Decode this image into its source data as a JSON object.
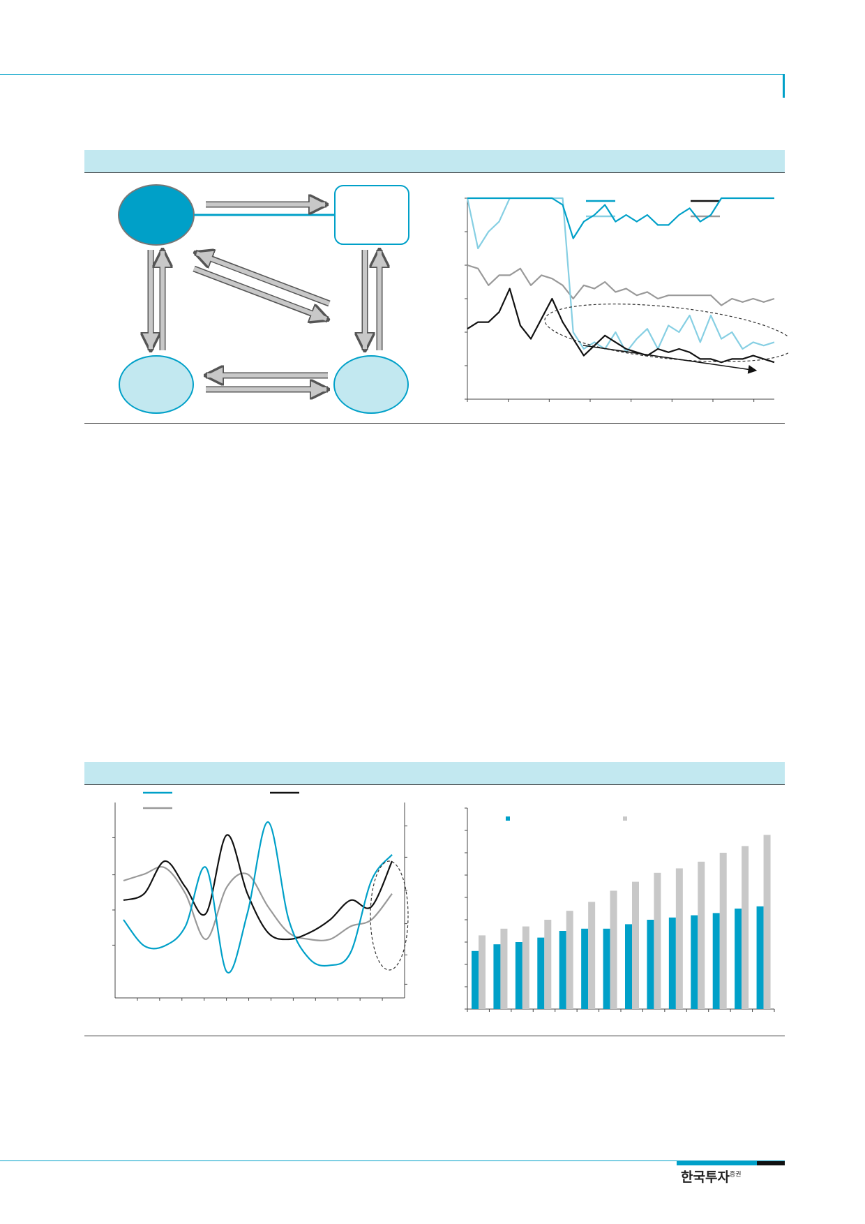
{
  "brand": {
    "name": "한국투자",
    "suffix": "증권"
  },
  "colors": {
    "teal": "#00a0c8",
    "light_teal": "#86cfe3",
    "black": "#111111",
    "gray": "#999999",
    "band": "#c2e8f0",
    "bar_gray": "#c8c8c8"
  },
  "chart_data": [
    {
      "type": "line",
      "series": [
        {
          "color": "#00a0c8",
          "values": [
            62,
            64,
            62,
            66,
            62,
            67,
            63,
            66,
            60,
            58,
            48,
            53,
            55,
            58,
            53,
            55,
            53,
            55,
            52,
            52,
            55,
            57,
            53,
            55,
            60,
            61,
            61,
            64,
            64,
            60
          ]
        },
        {
          "color": "#86cfe3",
          "values": [
            60,
            45,
            50,
            53,
            70,
            64,
            80,
            75,
            73,
            75,
            20,
            15,
            17,
            15,
            20,
            14,
            18,
            21,
            15,
            22,
            20,
            25,
            17,
            25,
            18,
            20,
            15,
            17,
            16,
            17
          ]
        },
        {
          "color": "#111111",
          "values": [
            21,
            23,
            23,
            26,
            33,
            22,
            18,
            24,
            30,
            23,
            18,
            13,
            16,
            19,
            17,
            15,
            14,
            13,
            15,
            14,
            15,
            14,
            12,
            12,
            11,
            12,
            12,
            13,
            12,
            11
          ]
        },
        {
          "color": "#999999",
          "values": [
            40,
            39,
            34,
            37,
            37,
            39,
            34,
            37,
            36,
            34,
            30,
            34,
            33,
            35,
            32,
            33,
            31,
            32,
            30,
            31,
            31,
            31,
            31,
            31,
            28,
            30,
            29,
            30,
            29,
            30
          ]
        }
      ]
    },
    {
      "type": "line",
      "series": [
        {
          "color": "#00a0c8",
          "values": [
            -1.0,
            -3.0,
            -3.0,
            -1.5,
            3.0,
            -5.0,
            -0.5,
            6.5,
            -1.0,
            -4.0,
            -4.5,
            -3.5,
            2.0,
            4.0
          ]
        },
        {
          "color": "#111111",
          "values": [
            0.5,
            1.0,
            3.5,
            1.5,
            -0.5,
            5.5,
            1.0,
            -2.0,
            -2.5,
            -2.0,
            -1.0,
            0.5,
            0.0,
            3.5
          ]
        },
        {
          "color": "#999999",
          "values": [
            2.0,
            2.5,
            3.0,
            1.0,
            -2.5,
            1.5,
            2.5,
            0.0,
            -2.0,
            -2.5,
            -2.5,
            -1.5,
            -1.0,
            1.0
          ]
        }
      ]
    },
    {
      "type": "bar",
      "series": [
        {
          "color": "#00a0c8",
          "values": [
            26,
            29,
            30,
            32,
            35,
            36,
            36,
            38,
            40,
            41,
            42,
            43,
            45,
            46
          ]
        },
        {
          "color": "#c8c8c8",
          "values": [
            33,
            36,
            37,
            40,
            44,
            48,
            53,
            57,
            61,
            63,
            66,
            70,
            73,
            78
          ]
        }
      ]
    }
  ]
}
